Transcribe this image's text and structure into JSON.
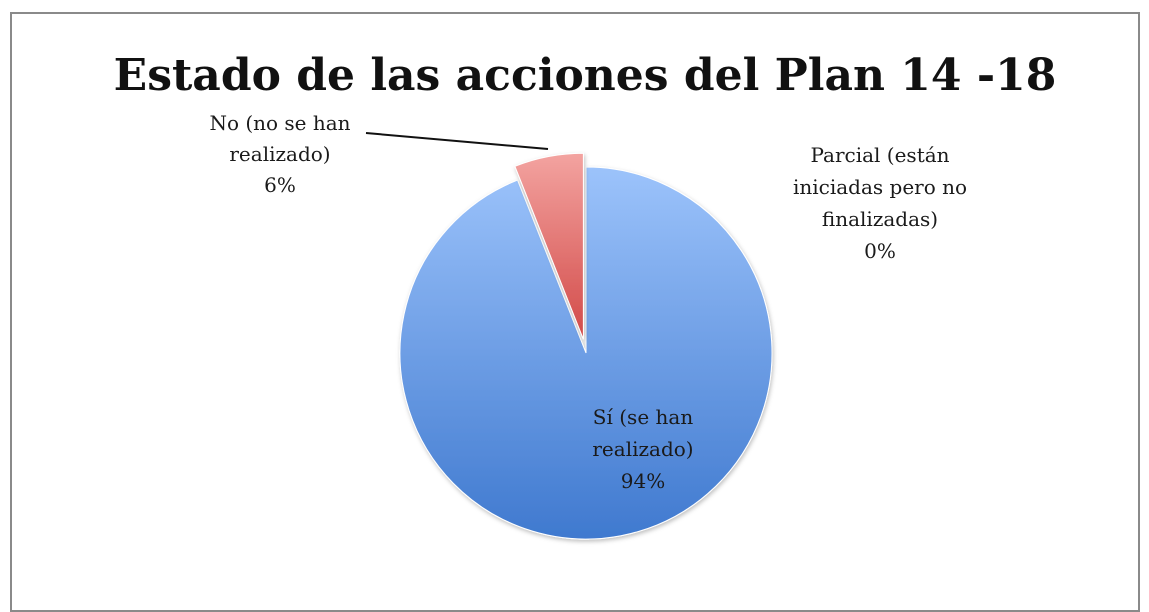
{
  "chart_data": {
    "type": "pie",
    "title": "Estado de las acciones del Plan 14 -18",
    "slices": [
      {
        "name": "Sí (se han realizado)",
        "label_lines": [
          "Sí (se han",
          "realizado)"
        ],
        "percent_label": "94%",
        "value": 94,
        "color": "#5b8fdc"
      },
      {
        "name": "No (no se han realizado)",
        "label_lines": [
          "No (no se han",
          "realizado)"
        ],
        "percent_label": "6%",
        "value": 6,
        "color": "#e06a68",
        "exploded": true
      },
      {
        "name": "Parcial (están iniciadas pero no finalizadas)",
        "label_lines": [
          "Parcial (están",
          "iniciadas pero no",
          "finalizadas)"
        ],
        "percent_label": "0%",
        "value": 0,
        "color": "#9bbb59"
      }
    ],
    "start_angle": "12 o'clock",
    "direction": "clockwise",
    "legend": "none"
  }
}
